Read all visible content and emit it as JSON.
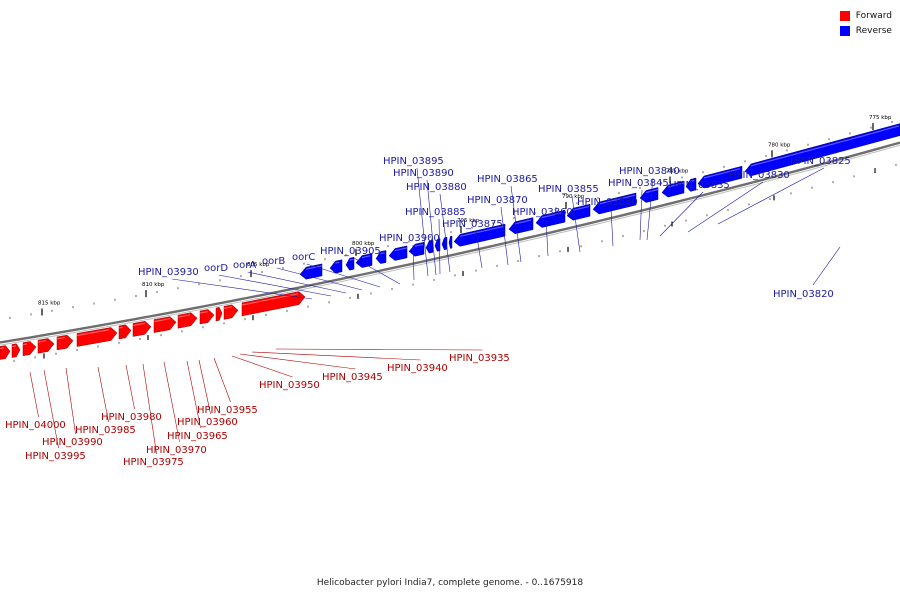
{
  "legend": {
    "forward": {
      "label": "Forward",
      "color": "#ff0000"
    },
    "reverse": {
      "label": "Reverse",
      "color": "#0000ff"
    }
  },
  "footer": "Helicobacter pylori India7, complete genome. - 0..1675918",
  "scale_labels": [
    "775 kbp",
    "780 kbp",
    "785 kbp",
    "790 kbp",
    "795 kbp",
    "800 kbp",
    "805 kbp",
    "810 kbp",
    "815 kbp"
  ],
  "reverse_genes": [
    "HPIN_03825",
    "HPIN_03830",
    "HPIN_03835",
    "HPIN_03840",
    "HPIN_03845",
    "HPIN_03850",
    "HPIN_03855",
    "HPIN_03860",
    "HPIN_03865",
    "HPIN_03870",
    "HPIN_03875",
    "HPIN_03880",
    "HPIN_03885",
    "HPIN_03890",
    "HPIN_03895",
    "HPIN_03900",
    "HPIN_03905",
    "oorC",
    "oorB",
    "oorA",
    "oorD",
    "HPIN_03930",
    "HPIN_03820"
  ],
  "forward_genes": [
    "HPIN_03935",
    "HPIN_03940",
    "HPIN_03945",
    "HPIN_03950",
    "HPIN_03955",
    "HPIN_03960",
    "HPIN_03965",
    "HPIN_03970",
    "HPIN_03975",
    "HPIN_03980",
    "HPIN_03985",
    "HPIN_03990",
    "HPIN_03995",
    "HPIN_04000"
  ]
}
